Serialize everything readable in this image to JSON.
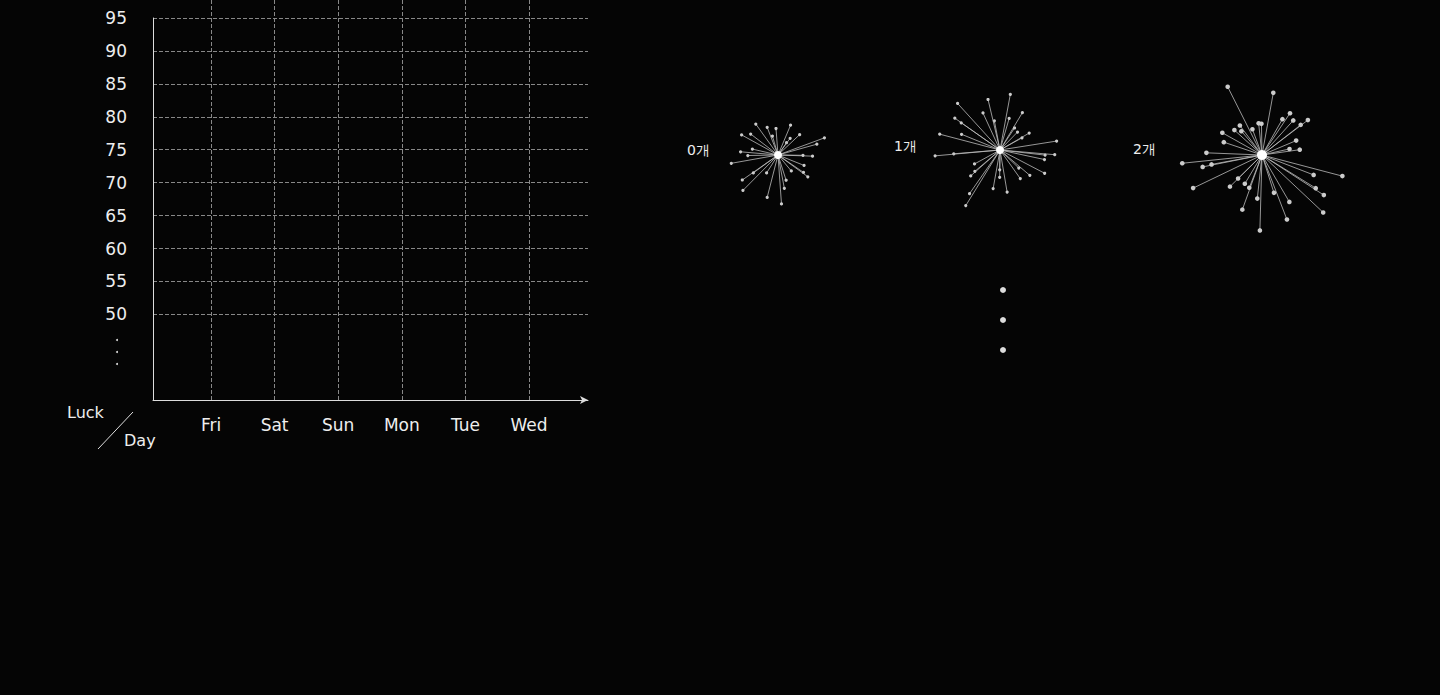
{
  "chart_data": {
    "type": "line",
    "xlabel": "Day",
    "ylabel": "Luck",
    "categories": [
      "Fri",
      "Sat",
      "Sun",
      "Mon",
      "Tue",
      "Wed"
    ],
    "ylim": [
      37,
      95
    ],
    "yticks": [
      50,
      55,
      60,
      65,
      70,
      75,
      80,
      85,
      90,
      95
    ],
    "grid": true,
    "annotations": [
      "0개",
      "1개",
      "2개"
    ]
  }
}
